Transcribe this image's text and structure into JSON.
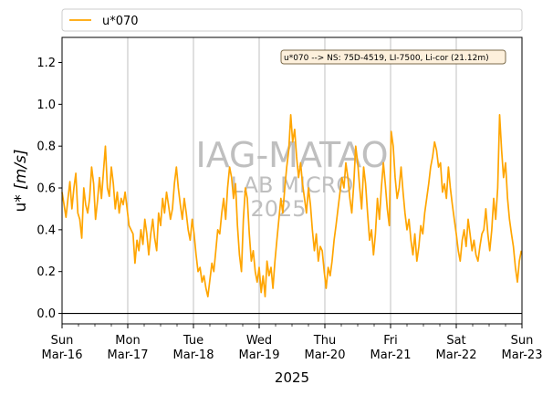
{
  "chart_data": {
    "type": "line",
    "xlabel": "2025",
    "ylabel": "u* [m/s]",
    "ylabel_main": "u* ",
    "ylabel_unit": "[m/s]",
    "ylim": [
      -0.05,
      1.32
    ],
    "yticks": [
      0.0,
      0.2,
      0.4,
      0.6,
      0.8,
      1.0,
      1.2
    ],
    "ytick_labels": [
      "0.0",
      "0.2",
      "0.4",
      "0.6",
      "0.8",
      "1.0",
      "1.2"
    ],
    "x_range_days": [
      0,
      7
    ],
    "x_ticks": [
      {
        "day": "Sun",
        "date": "Mar-16"
      },
      {
        "day": "Mon",
        "date": "Mar-17"
      },
      {
        "day": "Tue",
        "date": "Mar-18"
      },
      {
        "day": "Wed",
        "date": "Mar-19"
      },
      {
        "day": "Thu",
        "date": "Mar-20"
      },
      {
        "day": "Fri",
        "date": "Mar-21"
      },
      {
        "day": "Sat",
        "date": "Mar-22"
      },
      {
        "day": "Sun",
        "date": "Mar-23"
      }
    ],
    "grid": "vertical",
    "legend_placement": "top",
    "series": [
      {
        "name": "u*070",
        "color": "#FFA500",
        "points": [
          [
            0.0,
            0.58
          ],
          [
            0.03,
            0.52
          ],
          [
            0.06,
            0.46
          ],
          [
            0.09,
            0.55
          ],
          [
            0.12,
            0.63
          ],
          [
            0.15,
            0.5
          ],
          [
            0.18,
            0.6
          ],
          [
            0.21,
            0.67
          ],
          [
            0.24,
            0.48
          ],
          [
            0.27,
            0.45
          ],
          [
            0.3,
            0.36
          ],
          [
            0.33,
            0.6
          ],
          [
            0.36,
            0.52
          ],
          [
            0.39,
            0.48
          ],
          [
            0.42,
            0.55
          ],
          [
            0.45,
            0.7
          ],
          [
            0.48,
            0.62
          ],
          [
            0.51,
            0.45
          ],
          [
            0.54,
            0.54
          ],
          [
            0.57,
            0.65
          ],
          [
            0.6,
            0.55
          ],
          [
            0.63,
            0.68
          ],
          [
            0.66,
            0.8
          ],
          [
            0.69,
            0.6
          ],
          [
            0.72,
            0.56
          ],
          [
            0.75,
            0.7
          ],
          [
            0.78,
            0.62
          ],
          [
            0.81,
            0.5
          ],
          [
            0.84,
            0.58
          ],
          [
            0.87,
            0.48
          ],
          [
            0.9,
            0.55
          ],
          [
            0.93,
            0.52
          ],
          [
            0.96,
            0.58
          ],
          [
            0.99,
            0.5
          ],
          [
            1.02,
            0.42
          ],
          [
            1.05,
            0.4
          ],
          [
            1.08,
            0.38
          ],
          [
            1.11,
            0.24
          ],
          [
            1.14,
            0.35
          ],
          [
            1.17,
            0.3
          ],
          [
            1.2,
            0.4
          ],
          [
            1.23,
            0.33
          ],
          [
            1.26,
            0.45
          ],
          [
            1.29,
            0.38
          ],
          [
            1.32,
            0.28
          ],
          [
            1.35,
            0.38
          ],
          [
            1.38,
            0.45
          ],
          [
            1.41,
            0.36
          ],
          [
            1.44,
            0.3
          ],
          [
            1.47,
            0.48
          ],
          [
            1.5,
            0.42
          ],
          [
            1.53,
            0.55
          ],
          [
            1.56,
            0.48
          ],
          [
            1.59,
            0.58
          ],
          [
            1.62,
            0.52
          ],
          [
            1.65,
            0.45
          ],
          [
            1.68,
            0.5
          ],
          [
            1.71,
            0.62
          ],
          [
            1.74,
            0.7
          ],
          [
            1.77,
            0.6
          ],
          [
            1.8,
            0.52
          ],
          [
            1.83,
            0.45
          ],
          [
            1.86,
            0.55
          ],
          [
            1.89,
            0.48
          ],
          [
            1.92,
            0.4
          ],
          [
            1.95,
            0.35
          ],
          [
            1.98,
            0.45
          ],
          [
            2.01,
            0.38
          ],
          [
            2.04,
            0.28
          ],
          [
            2.07,
            0.2
          ],
          [
            2.1,
            0.22
          ],
          [
            2.13,
            0.15
          ],
          [
            2.16,
            0.18
          ],
          [
            2.19,
            0.12
          ],
          [
            2.22,
            0.08
          ],
          [
            2.25,
            0.16
          ],
          [
            2.28,
            0.24
          ],
          [
            2.31,
            0.2
          ],
          [
            2.34,
            0.3
          ],
          [
            2.37,
            0.4
          ],
          [
            2.4,
            0.38
          ],
          [
            2.43,
            0.48
          ],
          [
            2.46,
            0.55
          ],
          [
            2.49,
            0.45
          ],
          [
            2.52,
            0.6
          ],
          [
            2.55,
            0.7
          ],
          [
            2.58,
            0.65
          ],
          [
            2.61,
            0.55
          ],
          [
            2.64,
            0.62
          ],
          [
            2.67,
            0.42
          ],
          [
            2.7,
            0.28
          ],
          [
            2.73,
            0.2
          ],
          [
            2.76,
            0.45
          ],
          [
            2.79,
            0.6
          ],
          [
            2.82,
            0.55
          ],
          [
            2.85,
            0.38
          ],
          [
            2.88,
            0.25
          ],
          [
            2.91,
            0.3
          ],
          [
            2.94,
            0.2
          ],
          [
            2.97,
            0.15
          ],
          [
            3.0,
            0.22
          ],
          [
            3.03,
            0.1
          ],
          [
            3.06,
            0.18
          ],
          [
            3.09,
            0.08
          ],
          [
            3.12,
            0.25
          ],
          [
            3.15,
            0.18
          ],
          [
            3.18,
            0.22
          ],
          [
            3.21,
            0.12
          ],
          [
            3.24,
            0.25
          ],
          [
            3.27,
            0.35
          ],
          [
            3.3,
            0.45
          ],
          [
            3.33,
            0.55
          ],
          [
            3.36,
            0.48
          ],
          [
            3.39,
            0.6
          ],
          [
            3.42,
            0.7
          ],
          [
            3.45,
            0.78
          ],
          [
            3.48,
            0.95
          ],
          [
            3.51,
            0.82
          ],
          [
            3.54,
            0.88
          ],
          [
            3.57,
            0.75
          ],
          [
            3.6,
            0.65
          ],
          [
            3.63,
            0.72
          ],
          [
            3.66,
            0.62
          ],
          [
            3.69,
            0.55
          ],
          [
            3.72,
            0.48
          ],
          [
            3.75,
            0.6
          ],
          [
            3.78,
            0.52
          ],
          [
            3.81,
            0.4
          ],
          [
            3.84,
            0.3
          ],
          [
            3.87,
            0.38
          ],
          [
            3.9,
            0.25
          ],
          [
            3.93,
            0.32
          ],
          [
            3.96,
            0.3
          ],
          [
            3.99,
            0.2
          ],
          [
            4.02,
            0.12
          ],
          [
            4.05,
            0.22
          ],
          [
            4.08,
            0.18
          ],
          [
            4.11,
            0.25
          ],
          [
            4.14,
            0.35
          ],
          [
            4.17,
            0.42
          ],
          [
            4.2,
            0.5
          ],
          [
            4.23,
            0.58
          ],
          [
            4.26,
            0.65
          ],
          [
            4.29,
            0.6
          ],
          [
            4.32,
            0.72
          ],
          [
            4.35,
            0.65
          ],
          [
            4.38,
            0.55
          ],
          [
            4.41,
            0.48
          ],
          [
            4.44,
            0.62
          ],
          [
            4.47,
            0.8
          ],
          [
            4.5,
            0.72
          ],
          [
            4.53,
            0.6
          ],
          [
            4.56,
            0.5
          ],
          [
            4.59,
            0.7
          ],
          [
            4.62,
            0.62
          ],
          [
            4.65,
            0.48
          ],
          [
            4.68,
            0.35
          ],
          [
            4.71,
            0.4
          ],
          [
            4.74,
            0.28
          ],
          [
            4.77,
            0.38
          ],
          [
            4.8,
            0.55
          ],
          [
            4.83,
            0.45
          ],
          [
            4.86,
            0.6
          ],
          [
            4.89,
            0.72
          ],
          [
            4.92,
            0.62
          ],
          [
            4.95,
            0.5
          ],
          [
            4.98,
            0.42
          ],
          [
            5.01,
            0.87
          ],
          [
            5.04,
            0.8
          ],
          [
            5.07,
            0.65
          ],
          [
            5.1,
            0.55
          ],
          [
            5.13,
            0.6
          ],
          [
            5.16,
            0.7
          ],
          [
            5.19,
            0.58
          ],
          [
            5.22,
            0.48
          ],
          [
            5.25,
            0.4
          ],
          [
            5.28,
            0.45
          ],
          [
            5.31,
            0.35
          ],
          [
            5.34,
            0.28
          ],
          [
            5.37,
            0.38
          ],
          [
            5.4,
            0.25
          ],
          [
            5.43,
            0.32
          ],
          [
            5.46,
            0.42
          ],
          [
            5.49,
            0.38
          ],
          [
            5.52,
            0.48
          ],
          [
            5.55,
            0.55
          ],
          [
            5.58,
            0.62
          ],
          [
            5.61,
            0.7
          ],
          [
            5.64,
            0.75
          ],
          [
            5.67,
            0.82
          ],
          [
            5.7,
            0.78
          ],
          [
            5.73,
            0.7
          ],
          [
            5.76,
            0.72
          ],
          [
            5.79,
            0.58
          ],
          [
            5.82,
            0.62
          ],
          [
            5.85,
            0.55
          ],
          [
            5.88,
            0.7
          ],
          [
            5.91,
            0.6
          ],
          [
            5.94,
            0.52
          ],
          [
            5.97,
            0.45
          ],
          [
            6.0,
            0.38
          ],
          [
            6.03,
            0.3
          ],
          [
            6.06,
            0.25
          ],
          [
            6.09,
            0.35
          ],
          [
            6.12,
            0.4
          ],
          [
            6.15,
            0.32
          ],
          [
            6.18,
            0.45
          ],
          [
            6.21,
            0.38
          ],
          [
            6.24,
            0.3
          ],
          [
            6.27,
            0.35
          ],
          [
            6.3,
            0.28
          ],
          [
            6.33,
            0.25
          ],
          [
            6.36,
            0.32
          ],
          [
            6.39,
            0.38
          ],
          [
            6.42,
            0.4
          ],
          [
            6.45,
            0.5
          ],
          [
            6.48,
            0.38
          ],
          [
            6.51,
            0.3
          ],
          [
            6.54,
            0.4
          ],
          [
            6.57,
            0.55
          ],
          [
            6.6,
            0.45
          ],
          [
            6.63,
            0.6
          ],
          [
            6.66,
            0.95
          ],
          [
            6.69,
            0.78
          ],
          [
            6.72,
            0.65
          ],
          [
            6.75,
            0.72
          ],
          [
            6.78,
            0.55
          ],
          [
            6.81,
            0.45
          ],
          [
            6.84,
            0.38
          ],
          [
            6.87,
            0.32
          ],
          [
            6.9,
            0.22
          ],
          [
            6.93,
            0.15
          ],
          [
            6.96,
            0.25
          ],
          [
            6.99,
            0.3
          ]
        ]
      }
    ],
    "hline": 0.0,
    "annotation": "u*070 --> NS: 75D-4519, LI-7500, Li-cor (21.12m)",
    "watermark": [
      "IAG-MATAO",
      "LAB MICRO",
      "2025"
    ]
  }
}
